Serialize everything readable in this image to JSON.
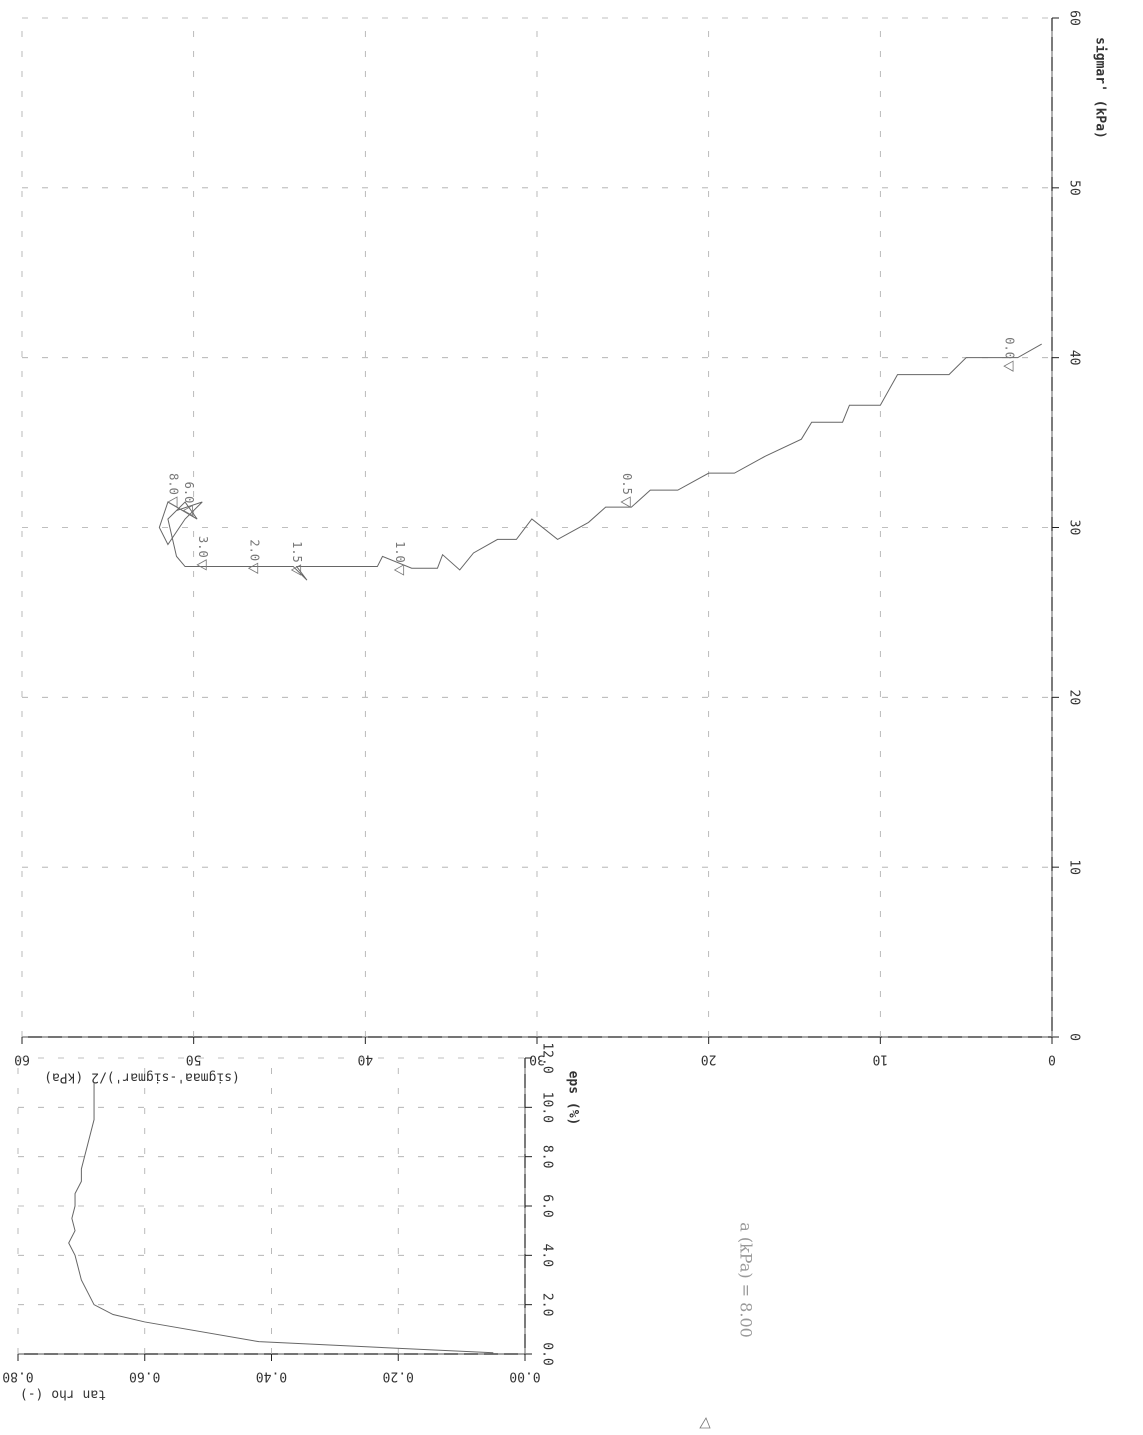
{
  "chart_data": [
    {
      "type": "line",
      "x_label": "sigmar' (kPa)",
      "y_label": "(sigmaa'-sigmar')/2 (kPa)",
      "xlim": [
        0,
        60
      ],
      "xticks": [
        0,
        10,
        20,
        30,
        40,
        50,
        60
      ],
      "ylim": [
        0,
        60
      ],
      "yticks": [
        0,
        10,
        20,
        30,
        40,
        50,
        60
      ],
      "grid": true,
      "color": "#666666",
      "x": [
        40.8,
        40,
        40,
        39,
        39,
        37.2,
        37.2,
        36.2,
        36.2,
        35.2,
        34.2,
        33.2,
        33.2,
        32.2,
        32.2,
        31.2,
        31.2,
        30.3,
        29.3,
        30.5,
        29.3,
        29.3,
        28.5,
        27.5,
        28.4,
        27.6,
        27.6,
        28.3,
        27.7,
        27.7,
        26.9,
        27.7,
        27.7,
        28.3,
        30.5,
        31.5,
        30.5,
        31.5,
        30,
        29,
        30.5,
        31.5,
        31
      ],
      "values": [
        0.6,
        2,
        5,
        6,
        9,
        10,
        11.8,
        12.2,
        14,
        14.6,
        16.7,
        18.5,
        20,
        21.8,
        23.4,
        24.5,
        26,
        27,
        28.8,
        30.3,
        31.2,
        32.3,
        33.7,
        34.5,
        35.5,
        35.8,
        37.3,
        39,
        39.3,
        44,
        43.4,
        44.2,
        50.5,
        51,
        51.5,
        50.5,
        49.8,
        51.5,
        52,
        51.5,
        50.5,
        49.5,
        51
      ],
      "point_labels": {
        "x": [
          39.5,
          31.5,
          27.5,
          27.5,
          27.6,
          27.8,
          31.0,
          31.5
        ],
        "y": [
          2.5,
          24.8,
          38.0,
          44.0,
          46.5,
          49.5,
          50.3,
          51.2
        ],
        "labels": [
          "0.0",
          "0.5",
          "1.0",
          "1.5",
          "2.0",
          "3.0",
          "6.0",
          "8.0"
        ]
      },
      "annotation": "a (kPa) = 8.00"
    },
    {
      "type": "line",
      "x_label": "eps (%)",
      "y_label": "tan rho (-)",
      "xlim": [
        0,
        12
      ],
      "xticks": [
        {
          "value": 0,
          "label": "0.0"
        },
        {
          "value": 2,
          "label": "2.0"
        },
        {
          "value": 4,
          "label": "4.0"
        },
        {
          "value": 6,
          "label": "6.0"
        },
        {
          "value": 8,
          "label": "8.0"
        },
        {
          "value": 10,
          "label": "10.0"
        },
        {
          "value": 12,
          "label": "12.0"
        }
      ],
      "ylim": [
        0,
        0.8
      ],
      "yticks": [
        {
          "value": 0,
          "label": "0.00"
        },
        {
          "value": 0.2,
          "label": "0.20"
        },
        {
          "value": 0.4,
          "label": "0.40"
        },
        {
          "value": 0.6,
          "label": "0.60"
        },
        {
          "value": 0.8,
          "label": "0.80"
        }
      ],
      "grid": true,
      "color": "#666666",
      "x": [
        0.05,
        0.5,
        1.3,
        1.6,
        2.0,
        2.5,
        3.0,
        3.5,
        4.0,
        4.5,
        5.0,
        5.5,
        6.0,
        6.5,
        7.0,
        7.5,
        8.0,
        8.5,
        9.0,
        9.5,
        10.0,
        10.5,
        11.0
      ],
      "values": [
        0.05,
        0.42,
        0.6,
        0.65,
        0.68,
        0.69,
        0.7,
        0.705,
        0.71,
        0.72,
        0.71,
        0.715,
        0.71,
        0.71,
        0.7,
        0.7,
        0.695,
        0.69,
        0.685,
        0.68,
        0.68,
        0.68,
        0.68
      ]
    }
  ]
}
